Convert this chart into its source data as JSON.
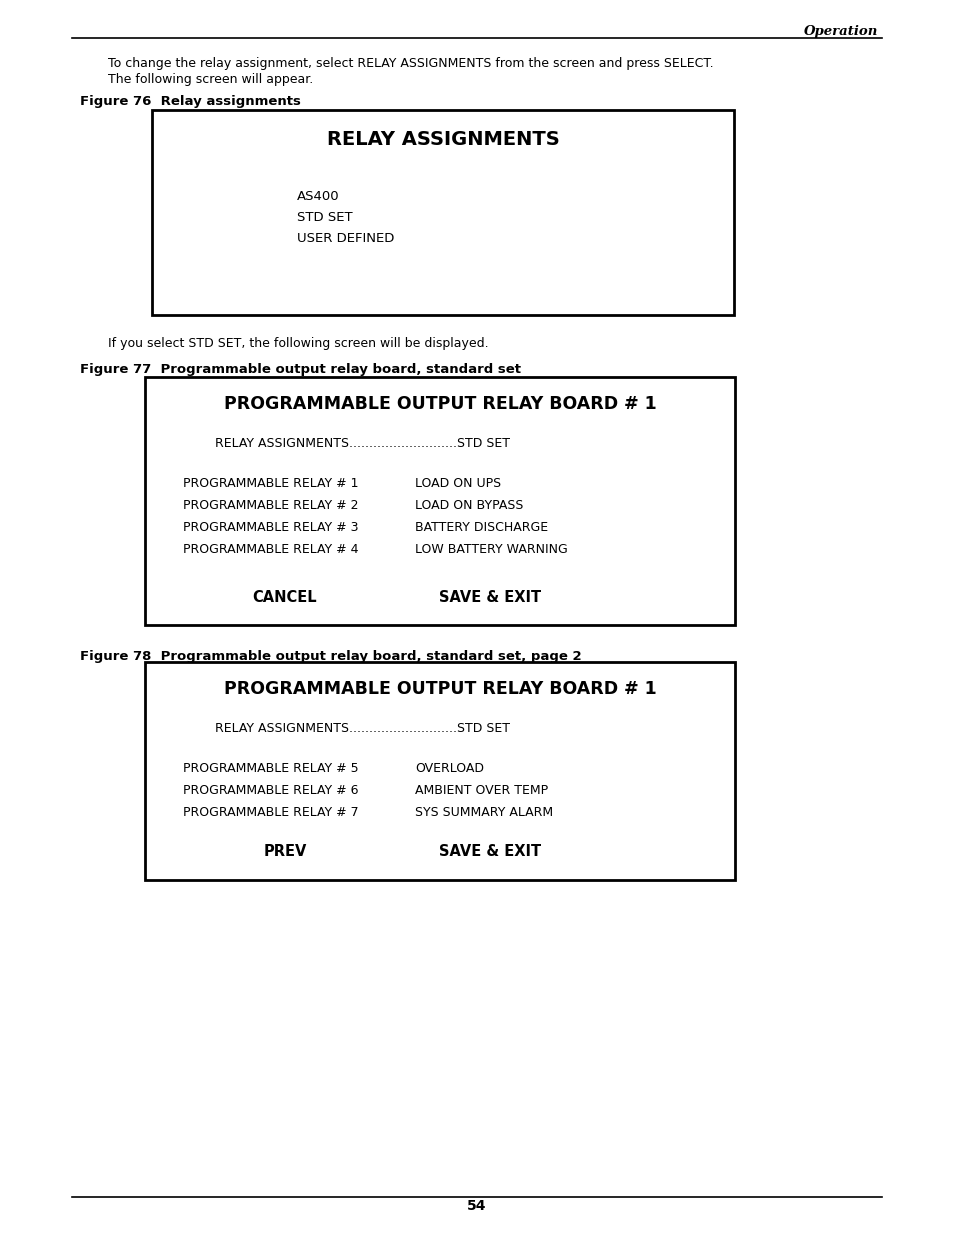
{
  "page_bg": "#ffffff",
  "header_text": "Operation",
  "page_number": "54",
  "body_text_line1": "To change the relay assignment, select RELAY ASSIGNMENTS from the screen and press SELECT.",
  "body_text_line2": "The following screen will appear.",
  "fig76_label": "Figure 76  Relay assignments",
  "fig77_label": "Figure 77  Programmable output relay board, standard set",
  "fig78_label": "Figure 78  Programmable output relay board, standard set, page 2",
  "between_text": "If you select STD SET, the following screen will be displayed.",
  "box1_title": "RELAY ASSIGNMENTS",
  "box1_lines": [
    "AS400",
    "STD SET",
    "USER DEFINED"
  ],
  "box2_title": "PROGRAMMABLE OUTPUT RELAY BOARD # 1",
  "box2_assign": "RELAY ASSIGNMENTS...........................STD SET",
  "box2_relays": [
    [
      "PROGRAMMABLE RELAY # 1",
      "LOAD ON UPS"
    ],
    [
      "PROGRAMMABLE RELAY # 2",
      "LOAD ON BYPASS"
    ],
    [
      "PROGRAMMABLE RELAY # 3",
      "BATTERY DISCHARGE"
    ],
    [
      "PROGRAMMABLE RELAY # 4",
      "LOW BATTERY WARNING"
    ]
  ],
  "box2_buttons": [
    "CANCEL",
    "SAVE & EXIT"
  ],
  "box3_title": "PROGRAMMABLE OUTPUT RELAY BOARD # 1",
  "box3_assign": "RELAY ASSIGNMENTS...........................STD SET",
  "box3_relays": [
    [
      "PROGRAMMABLE RELAY # 5",
      "OVERLOAD"
    ],
    [
      "PROGRAMMABLE RELAY # 6",
      "AMBIENT OVER TEMP"
    ],
    [
      "PROGRAMMABLE RELAY # 7",
      "SYS SUMMARY ALARM"
    ]
  ],
  "box3_buttons": [
    "PREV",
    "SAVE & EXIT"
  ]
}
